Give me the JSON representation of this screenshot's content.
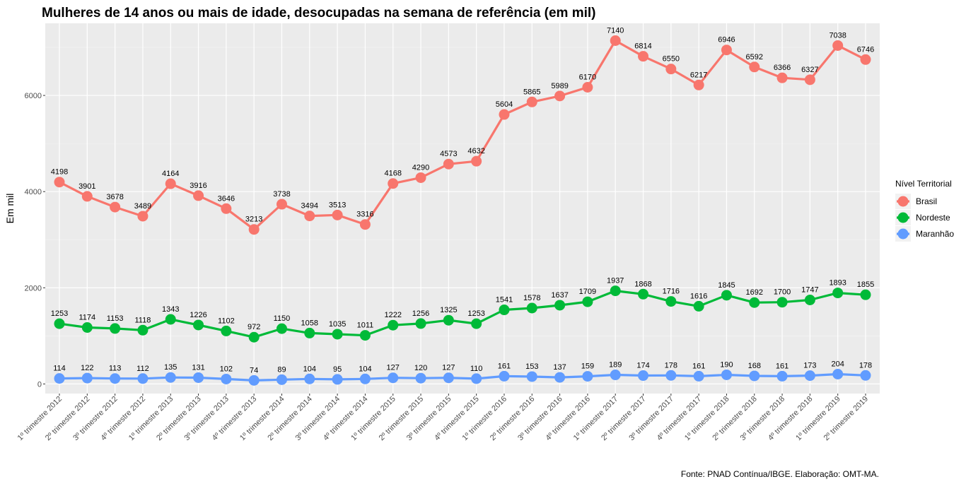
{
  "chart_data": {
    "type": "line",
    "title": "Mulheres de 14 anos ou mais de idade, desocupadas na semana de referência (em mil)",
    "xlabel": "",
    "ylabel": "Em mil",
    "ylim": [
      -200,
      7500
    ],
    "yticks": [
      0,
      2000,
      4000,
      6000
    ],
    "ytick_labels": [
      "0",
      "2000",
      "4000",
      "6000"
    ],
    "categories": [
      "1º trimestre 2012",
      "2º trimestre 2012",
      "3º trimestre 2012",
      "4º trimestre 2012",
      "1º trimestre 2013",
      "2º trimestre 2013",
      "3º trimestre 2013",
      "4º trimestre 2013",
      "1º trimestre 2014",
      "2º trimestre 2014",
      "3º trimestre 2014",
      "4º trimestre 2014",
      "1º trimestre 2015",
      "2º trimestre 2015",
      "3º trimestre 2015",
      "4º trimestre 2015",
      "1º trimestre 2016",
      "2º trimestre 2016",
      "3º trimestre 2016",
      "4º trimestre 2016",
      "1º trimestre 2017",
      "2º trimestre 2017",
      "3º trimestre 2017",
      "4º trimestre 2017",
      "1º trimestre 2018",
      "2º trimestre 2018",
      "3º trimestre 2018",
      "4º trimestre 2018",
      "1º trimestre 2019",
      "2º trimestre 2019"
    ],
    "series": [
      {
        "name": "Brasil",
        "color": "#F8766D",
        "values": [
          4198,
          3901,
          3678,
          3489,
          4164,
          3916,
          3646,
          3213,
          3738,
          3494,
          3513,
          3316,
          4168,
          4290,
          4573,
          4632,
          5604,
          5865,
          5989,
          6170,
          7140,
          6814,
          6550,
          6217,
          6946,
          6592,
          6366,
          6327,
          7038,
          6746
        ]
      },
      {
        "name": "Nordeste",
        "color": "#00BA38",
        "values": [
          1253,
          1174,
          1153,
          1118,
          1343,
          1226,
          1102,
          972,
          1150,
          1058,
          1035,
          1011,
          1222,
          1256,
          1325,
          1253,
          1541,
          1578,
          1637,
          1709,
          1937,
          1868,
          1716,
          1616,
          1845,
          1692,
          1700,
          1747,
          1893,
          1855
        ]
      },
      {
        "name": "Maranhão",
        "color": "#619CFF",
        "values": [
          114,
          122,
          113,
          112,
          135,
          131,
          102,
          74,
          89,
          104,
          95,
          104,
          127,
          120,
          127,
          110,
          161,
          153,
          137,
          159,
          189,
          174,
          178,
          161,
          190,
          168,
          161,
          173,
          204,
          178
        ]
      }
    ],
    "legend": {
      "title": "Nível Territorial",
      "position": "right",
      "entries": [
        "Brasil",
        "Nordeste",
        "Maranhão"
      ]
    },
    "grid": true,
    "caption": "Fonte: PNAD Contínua/IBGE. Elaboração: OMT-MA."
  }
}
